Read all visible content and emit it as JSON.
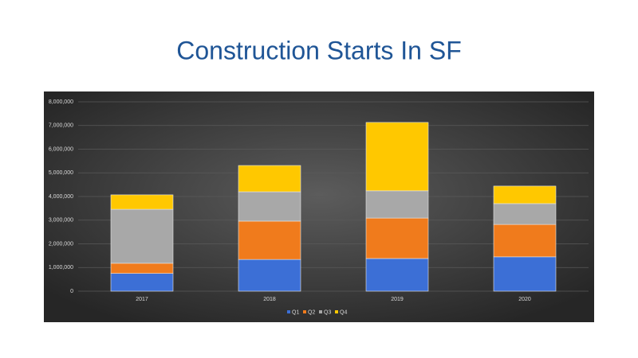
{
  "chart_data": {
    "type": "stacked_bar",
    "title": "Construction Starts In SF",
    "categories": [
      "2017",
      "2018",
      "2019",
      "2020"
    ],
    "series": [
      {
        "name": "Q1",
        "color": "#3c6fd6",
        "values": [
          750000,
          1340000,
          1380000,
          1450000
        ]
      },
      {
        "name": "Q2",
        "color": "#f07b1c",
        "values": [
          430000,
          1620000,
          1710000,
          1370000
        ]
      },
      {
        "name": "Q3",
        "color": "#a8a8a8",
        "values": [
          2280000,
          1240000,
          1150000,
          880000
        ]
      },
      {
        "name": "Q4",
        "color": "#ffc800",
        "values": [
          610000,
          1110000,
          2890000,
          740000
        ]
      }
    ],
    "ylim": [
      0,
      8000000
    ],
    "yticks": [
      0,
      {
        "value": 1000000,
        "label": "1,000,000"
      },
      {
        "value": 2000000,
        "label": "2,000,000"
      },
      {
        "value": 3000000,
        "label": "3,000,000"
      },
      {
        "value": 4000000,
        "label": "4,000,000"
      },
      {
        "value": 5000000,
        "label": "5,000,000"
      },
      {
        "value": 6000000,
        "label": "6,000,000"
      },
      {
        "value": 7000000,
        "label": "7,000,000"
      },
      {
        "value": 8000000,
        "label": "8,000,000"
      }
    ],
    "grid": true,
    "legend": "bottom"
  }
}
